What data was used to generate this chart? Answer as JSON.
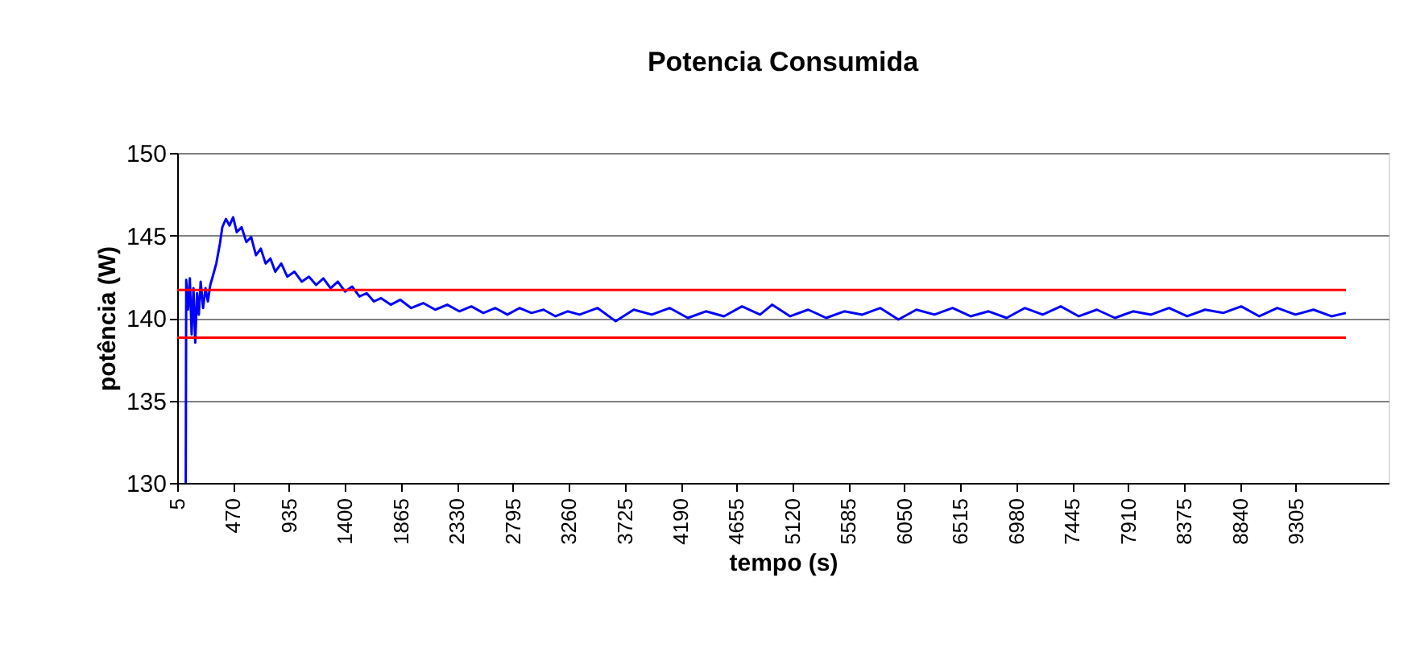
{
  "chart_data": {
    "type": "line",
    "title": "Potencia Consumida",
    "xlabel": "tempo (s)",
    "ylabel": "potência (W)",
    "xlim": [
      5,
      10075
    ],
    "xticks": [
      5,
      470,
      935,
      1400,
      1865,
      2330,
      2795,
      3260,
      3725,
      4190,
      4655,
      5120,
      5585,
      6050,
      6515,
      6980,
      7445,
      7910,
      8375,
      8840,
      9305
    ],
    "ylim": [
      130,
      150
    ],
    "yticks": [
      130,
      135,
      140,
      145,
      150
    ],
    "grid": "y",
    "marker": "none",
    "line_style": "solid",
    "series": [
      {
        "color": "#0000ff",
        "x": [
          76,
          80,
          95,
          110,
          125,
          140,
          155,
          170,
          185,
          200,
          220,
          240,
          260,
          280,
          300,
          330,
          360,
          380,
          410,
          440,
          470,
          500,
          540,
          580,
          620,
          660,
          700,
          740,
          780,
          820,
          870,
          920,
          980,
          1040,
          1100,
          1160,
          1220,
          1280,
          1340,
          1400,
          1460,
          1520,
          1580,
          1640,
          1700,
          1780,
          1860,
          1950,
          2050,
          2150,
          2250,
          2350,
          2450,
          2550,
          2650,
          2750,
          2850,
          2950,
          3050,
          3150,
          3250,
          3350,
          3500,
          3650,
          3800,
          3950,
          4100,
          4250,
          4400,
          4550,
          4700,
          4850,
          4950,
          5100,
          5250,
          5400,
          5550,
          5700,
          5850,
          6000,
          6150,
          6300,
          6450,
          6600,
          6750,
          6900,
          7050,
          7200,
          7350,
          7500,
          7650,
          7800,
          7950,
          8100,
          8250,
          8400,
          8550,
          8700,
          8850,
          9000,
          9150,
          9300,
          9450,
          9600,
          9720
        ],
        "values": [
          130,
          142.3,
          140.5,
          142.4,
          139.0,
          141.8,
          138.5,
          141.5,
          140.2,
          142.2,
          140.6,
          141.8,
          141.0,
          142.0,
          142.5,
          143.3,
          144.5,
          145.5,
          146.0,
          145.6,
          146.1,
          145.2,
          145.5,
          144.6,
          144.9,
          143.8,
          144.2,
          143.3,
          143.6,
          142.8,
          143.3,
          142.5,
          142.8,
          142.2,
          142.5,
          142.0,
          142.4,
          141.8,
          142.2,
          141.6,
          141.9,
          141.3,
          141.5,
          141.0,
          141.2,
          140.8,
          141.1,
          140.6,
          140.9,
          140.5,
          140.8,
          140.4,
          140.7,
          140.3,
          140.6,
          140.2,
          140.6,
          140.3,
          140.5,
          140.1,
          140.4,
          140.2,
          140.6,
          139.8,
          140.5,
          140.2,
          140.6,
          140.0,
          140.4,
          140.1,
          140.7,
          140.2,
          140.8,
          140.1,
          140.5,
          140.0,
          140.4,
          140.2,
          140.6,
          139.9,
          140.5,
          140.2,
          140.6,
          140.1,
          140.4,
          140.0,
          140.6,
          140.2,
          140.7,
          140.1,
          140.5,
          140.0,
          140.4,
          140.2,
          140.6,
          140.1,
          140.5,
          140.3,
          140.7,
          140.1,
          140.6,
          140.2,
          140.5,
          140.1,
          140.3
        ]
      },
      {
        "color": "#ff0000",
        "x": [
          5,
          9720
        ],
        "values": [
          141.7,
          141.7
        ]
      },
      {
        "color": "#ff0000",
        "x": [
          5,
          9720
        ],
        "values": [
          138.8,
          138.8
        ]
      }
    ]
  }
}
